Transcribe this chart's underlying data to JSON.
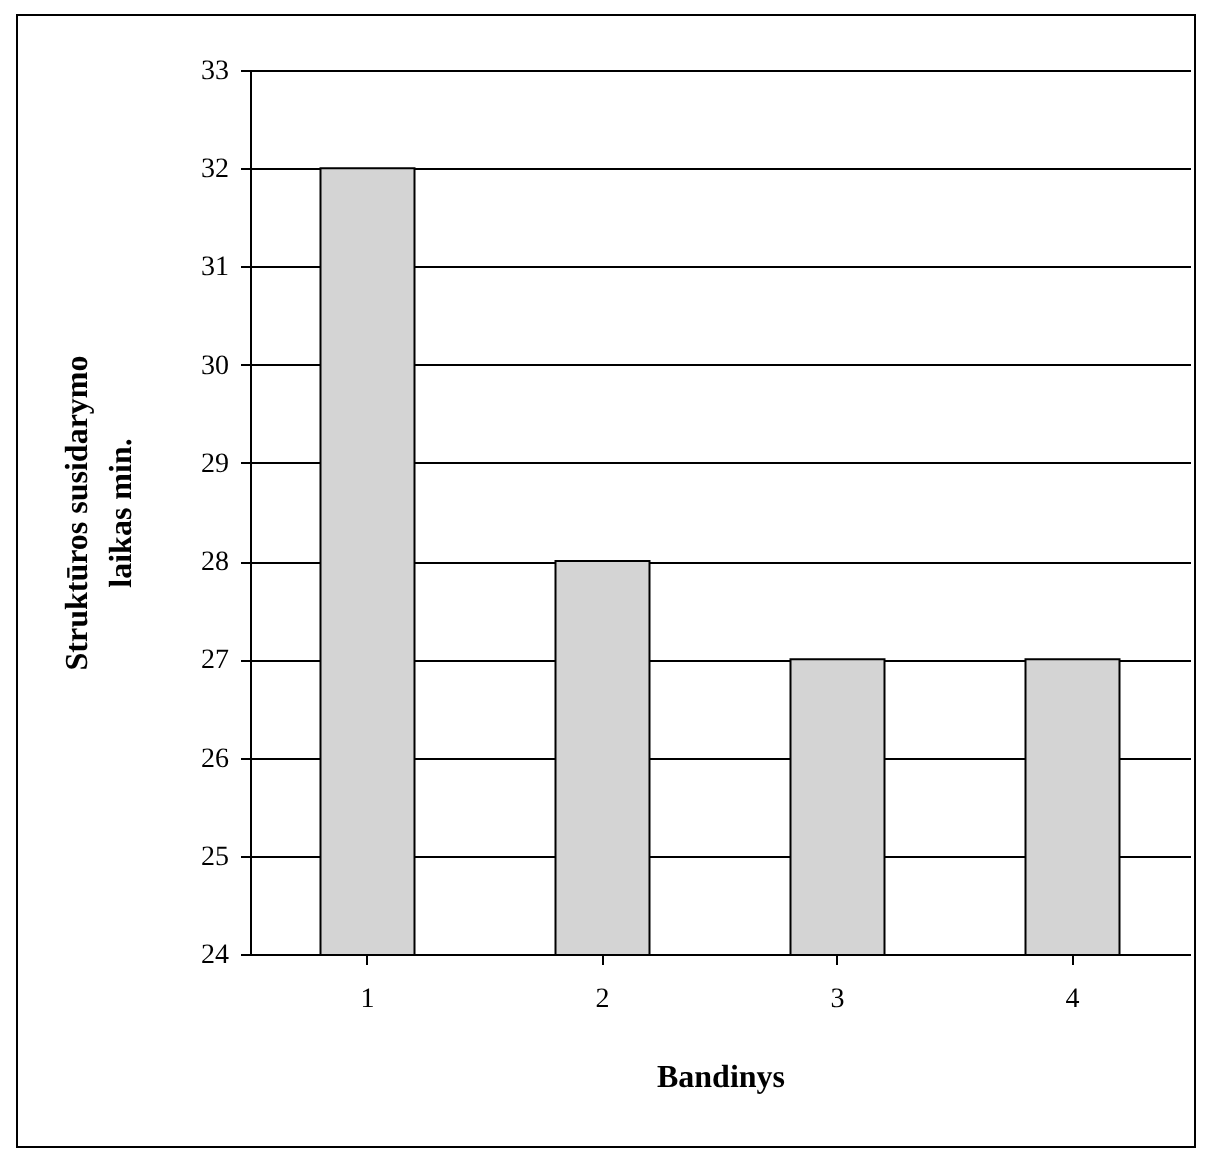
{
  "chart_data": {
    "type": "bar",
    "xlabel": "Bandinys",
    "ylabel": "Struktūros susidarymo laikas min.",
    "categories": [
      "1",
      "2",
      "3",
      "4"
    ],
    "values": [
      32,
      28,
      27,
      27
    ],
    "color": "#d4d4d4",
    "ylim": [
      24,
      33
    ],
    "yticks": [
      24,
      25,
      26,
      27,
      28,
      29,
      30,
      31,
      32,
      33
    ],
    "grid": "y"
  }
}
